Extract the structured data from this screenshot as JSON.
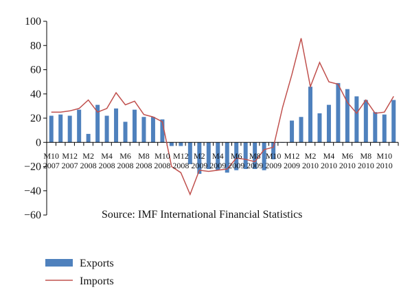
{
  "colors": {
    "exports": "#4f81bd",
    "imports": "#c0504d",
    "axis": "#000000"
  },
  "chart_data": {
    "type": "bar",
    "annotation": "Source:  IMF International Financial Statistics",
    "ylim": [
      -60,
      100
    ],
    "yticks": [
      "100",
      "80",
      "60",
      "40",
      "20",
      "0",
      "−20",
      "−40",
      "−60"
    ],
    "ytick_values": [
      100,
      80,
      60,
      40,
      20,
      0,
      -20,
      -40,
      -60
    ],
    "xtick_labels": [
      {
        "m": "M10",
        "y": "2007"
      },
      {
        "m": "M12",
        "y": "2007"
      },
      {
        "m": "M2",
        "y": "2008"
      },
      {
        "m": "M4",
        "y": "2008"
      },
      {
        "m": "M6",
        "y": "2008"
      },
      {
        "m": "M8",
        "y": "2008"
      },
      {
        "m": "M10",
        "y": "2008"
      },
      {
        "m": "M12",
        "y": "2008"
      },
      {
        "m": "M2",
        "y": "2009"
      },
      {
        "m": "M4",
        "y": "2009"
      },
      {
        "m": "M6",
        "y": "2009"
      },
      {
        "m": "M8",
        "y": "2009"
      },
      {
        "m": "M10",
        "y": "2009"
      },
      {
        "m": "M12",
        "y": "2009"
      },
      {
        "m": "M2",
        "y": "2010"
      },
      {
        "m": "M4",
        "y": "2010"
      },
      {
        "m": "M6",
        "y": "2010"
      },
      {
        "m": "M8",
        "y": "2010"
      },
      {
        "m": "M10",
        "y": "2010"
      }
    ],
    "categories": [
      "2007-10",
      "2007-11",
      "2007-12",
      "2008-01",
      "2008-02",
      "2008-03",
      "2008-04",
      "2008-05",
      "2008-06",
      "2008-07",
      "2008-08",
      "2008-09",
      "2008-10",
      "2008-11",
      "2008-12",
      "2009-01",
      "2009-02",
      "2009-03",
      "2009-04",
      "2009-05",
      "2009-06",
      "2009-07",
      "2009-08",
      "2009-09",
      "2009-10",
      "2009-11",
      "2009-12",
      "2010-01",
      "2010-02",
      "2010-03",
      "2010-04",
      "2010-05",
      "2010-06",
      "2010-07",
      "2010-08",
      "2010-09",
      "2010-10",
      "2010-11"
    ],
    "series": [
      {
        "name": "Exports",
        "type": "bar",
        "values": [
          22,
          23,
          22,
          27,
          7,
          31,
          22,
          28,
          17,
          27,
          21,
          21,
          19,
          -3,
          -3,
          -18,
          -26,
          -22,
          -23,
          -25,
          -23,
          -22,
          -22,
          -23,
          -14,
          0,
          18,
          21,
          46,
          24,
          31,
          49,
          44,
          38,
          35,
          25,
          23,
          35
        ]
      },
      {
        "name": "Imports",
        "type": "line",
        "values": [
          25,
          25,
          26,
          28,
          35,
          25,
          28,
          41,
          31,
          34,
          23,
          21,
          17,
          -20,
          -25,
          -43,
          -23,
          -24,
          -23,
          -22,
          -13,
          -14,
          -16,
          -6,
          -4,
          29,
          56,
          86,
          46,
          66,
          50,
          48,
          33,
          24,
          35,
          24,
          25,
          38
        ]
      }
    ]
  }
}
